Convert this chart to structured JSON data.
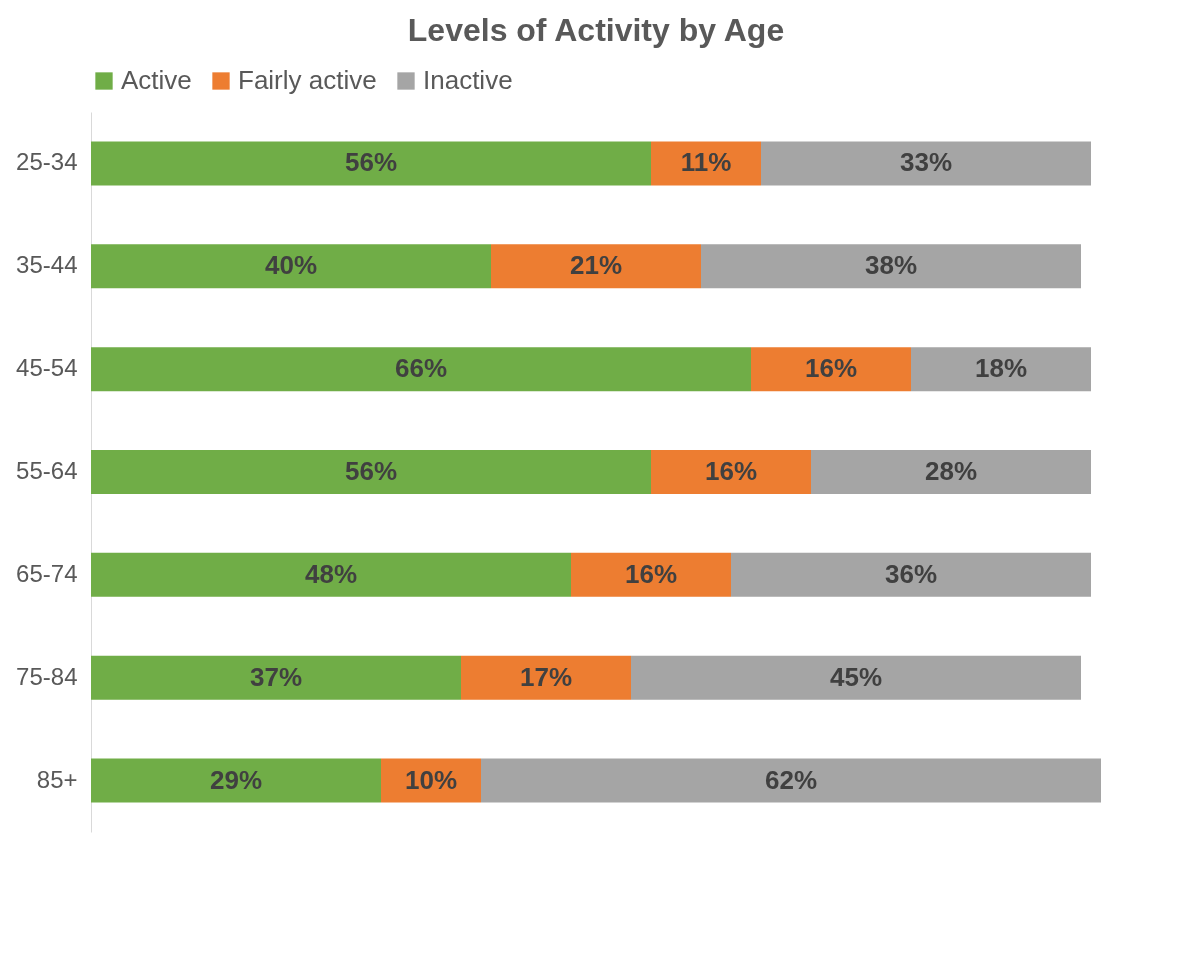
{
  "chart_data": {
    "type": "bar",
    "orientation": "horizontal",
    "stacked": true,
    "title": "Levels of Activity by Age",
    "legend": "top",
    "grid": false,
    "categories": [
      "25-34",
      "35-44",
      "45-54",
      "55-64",
      "65-74",
      "75-84",
      "85+"
    ],
    "series": [
      {
        "name": "Active",
        "color": "#70ad47",
        "values": [
          56,
          40,
          66,
          56,
          48,
          37,
          29
        ],
        "value_labels": [
          "56%",
          "40%",
          "66%",
          "56%",
          "48%",
          "37%",
          "29%"
        ]
      },
      {
        "name": "Fairly active",
        "color": "#ed7d31",
        "values": [
          11,
          21,
          16,
          16,
          16,
          17,
          10
        ],
        "value_labels": [
          "11%",
          "21%",
          "16%",
          "16%",
          "16%",
          "17%",
          "10%"
        ]
      },
      {
        "name": "Inactive",
        "color": "#a5a5a5",
        "values": [
          33,
          38,
          18,
          28,
          36,
          45,
          62
        ],
        "value_labels": [
          "33%",
          "38%",
          "18%",
          "28%",
          "36%",
          "45%",
          "62%"
        ]
      }
    ]
  }
}
